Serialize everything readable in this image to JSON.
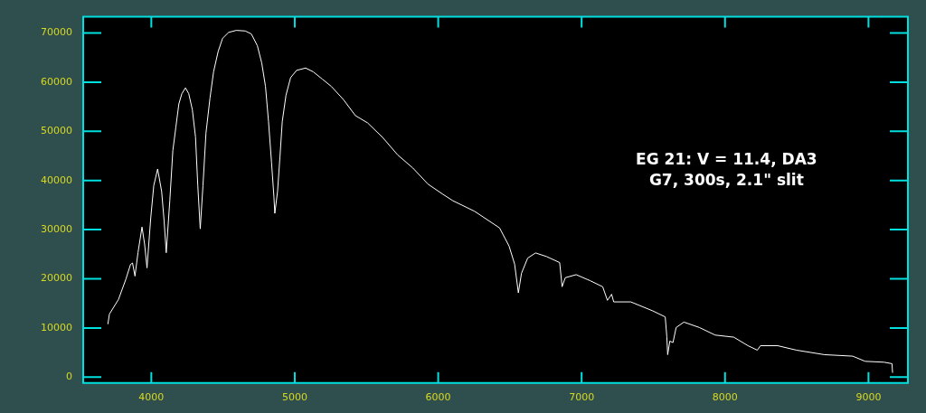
{
  "chart_data": {
    "type": "line",
    "x": [
      3697,
      3708,
      3771,
      3823,
      3855,
      3869,
      3886,
      3907,
      3935,
      3953,
      3970,
      3996,
      4017,
      4044,
      4072,
      4089,
      4104,
      4129,
      4150,
      4171,
      4192,
      4213,
      4238,
      4261,
      4286,
      4308,
      4324,
      4341,
      4360,
      4381,
      4409,
      4434,
      4466,
      4497,
      4539,
      4592,
      4655,
      4697,
      4739,
      4770,
      4796,
      4817,
      4838,
      4855,
      4861,
      4880,
      4897,
      4913,
      4939,
      4971,
      5013,
      5076,
      5129,
      5192,
      5255,
      5339,
      5423,
      5508,
      5613,
      5718,
      5824,
      5929,
      6034,
      6102,
      6254,
      6428,
      6494,
      6533,
      6559,
      6581,
      6624,
      6679,
      6755,
      6847,
      6864,
      6886,
      6962,
      7060,
      7147,
      7180,
      7209,
      7224,
      7343,
      7496,
      7583,
      7594,
      7600,
      7615,
      7637,
      7659,
      7713,
      7822,
      7931,
      8061,
      8160,
      8225,
      8247,
      8367,
      8498,
      8694,
      8890,
      8977,
      9108,
      9164,
      9168
    ],
    "series": [
      {
        "color": "#ffffff",
        "values": [
          10760,
          12830,
          15800,
          19950,
          22920,
          23220,
          20550,
          25300,
          30530,
          27080,
          22210,
          32420,
          38960,
          42340,
          37760,
          31830,
          25300,
          35980,
          46080,
          50830,
          55580,
          57660,
          58850,
          57660,
          54400,
          48880,
          38960,
          30170,
          38960,
          49640,
          56770,
          62110,
          66260,
          68930,
          70130,
          70540,
          70420,
          69820,
          67450,
          63880,
          59140,
          52010,
          43710,
          36590,
          33310,
          37760,
          44890,
          52010,
          57360,
          60920,
          62410,
          62880,
          62110,
          60630,
          59140,
          56470,
          53200,
          51720,
          48750,
          45190,
          42520,
          39260,
          37170,
          35890,
          33730,
          30350,
          26670,
          22980,
          17150,
          21140,
          24210,
          25260,
          24530,
          23300,
          18380,
          20220,
          20840,
          19610,
          18380,
          15620,
          16850,
          15300,
          15300,
          13470,
          12240,
          8250,
          4560,
          7320,
          7020,
          10080,
          11190,
          10080,
          8550,
          8120,
          6390,
          5480,
          6390,
          6390,
          5480,
          4560,
          4260,
          3210,
          3030,
          2730,
          870
        ]
      }
    ],
    "xlim": [
      3525,
      9275
    ],
    "ylim": [
      -1200,
      73300
    ],
    "xticks": [
      4000,
      5000,
      6000,
      7000,
      8000,
      9000
    ],
    "yticks": [
      0,
      10000,
      20000,
      30000,
      40000,
      50000,
      60000,
      70000
    ],
    "annotations": [
      "EG 21: V = 11.4, DA3",
      "G7, 300s, 2.1\" slit"
    ]
  }
}
